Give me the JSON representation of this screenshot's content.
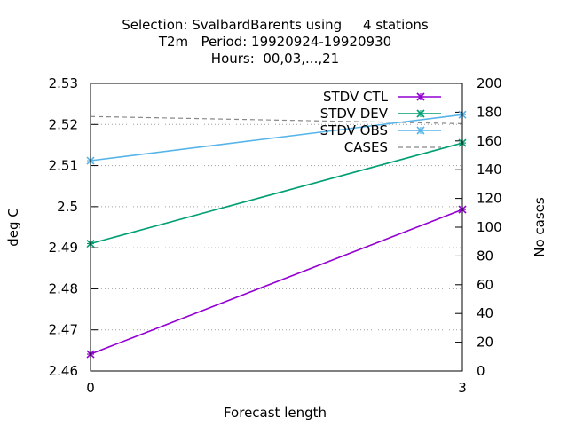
{
  "chart_data": {
    "type": "line",
    "title_lines": [
      "Selection: SvalbardBarents using     4 stations",
      "T2m   Period: 19920924-19920930",
      "Hours:  00,03,...,21"
    ],
    "xlabel": "Forecast length",
    "ylabel": "deg C",
    "y2label": "No cases",
    "x": [
      0,
      3
    ],
    "xlim": [
      0,
      3
    ],
    "x_ticks": [
      "0",
      "3"
    ],
    "ylim": [
      2.46,
      2.53
    ],
    "y_ticks": [
      "2.46",
      "2.47",
      "2.48",
      "2.49",
      "2.5",
      "2.51",
      "2.52",
      "2.53"
    ],
    "y2lim": [
      0,
      200
    ],
    "y2_ticks": [
      "0",
      "20",
      "40",
      "60",
      "80",
      "100",
      "120",
      "140",
      "160",
      "180",
      "200"
    ],
    "grid": true,
    "legend_position": "top-right",
    "series": [
      {
        "name": "STDV CTL",
        "axis": "y",
        "values": [
          2.4641,
          2.4993
        ],
        "color": "#9400d3",
        "marker": "x",
        "dash": "solid"
      },
      {
        "name": "STDV DEV",
        "axis": "y",
        "values": [
          2.491,
          2.5155
        ],
        "color": "#009e73",
        "marker": "x",
        "dash": "solid"
      },
      {
        "name": "STDV OBS",
        "axis": "y",
        "values": [
          2.5112,
          2.5224
        ],
        "color": "#56b4e9",
        "marker": "x",
        "dash": "solid"
      },
      {
        "name": "CASES",
        "axis": "y2",
        "values": [
          177,
          172
        ],
        "color": "#888888",
        "marker": "none",
        "dash": "dashed"
      }
    ]
  }
}
